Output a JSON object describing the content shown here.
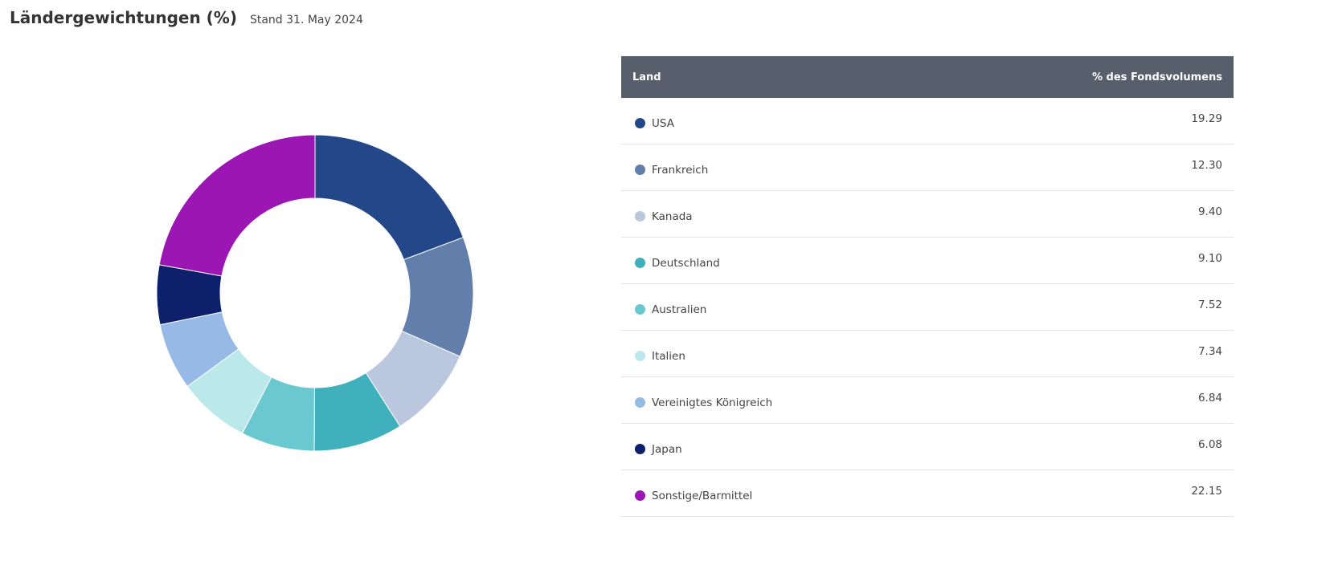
{
  "header": {
    "title": "Ländergewichtungen (%)",
    "date": "Stand  31. May 2024"
  },
  "table": {
    "col_land": "Land",
    "col_value": "% des Fondsvolumens"
  },
  "chart_data": {
    "type": "pie",
    "donut": true,
    "categories": [
      "USA",
      "Frankreich",
      "Kanada",
      "Deutschland",
      "Australien",
      "Italien",
      "Vereinigtes Königreich",
      "Japan",
      "Sonstige/Barmittel"
    ],
    "values": [
      19.29,
      12.3,
      9.4,
      9.1,
      7.52,
      7.34,
      6.84,
      6.08,
      22.15
    ],
    "value_labels": [
      "19.29",
      "12.30",
      "9.40",
      "9.10",
      "7.52",
      "7.34",
      "6.84",
      "6.08",
      "22.15"
    ],
    "colors": [
      "#24478a",
      "#627eab",
      "#bac7de",
      "#40b0bc",
      "#69c8d0",
      "#bbe8ea",
      "#96b9e6",
      "#0e1f6b",
      "#9b16b2"
    ]
  }
}
